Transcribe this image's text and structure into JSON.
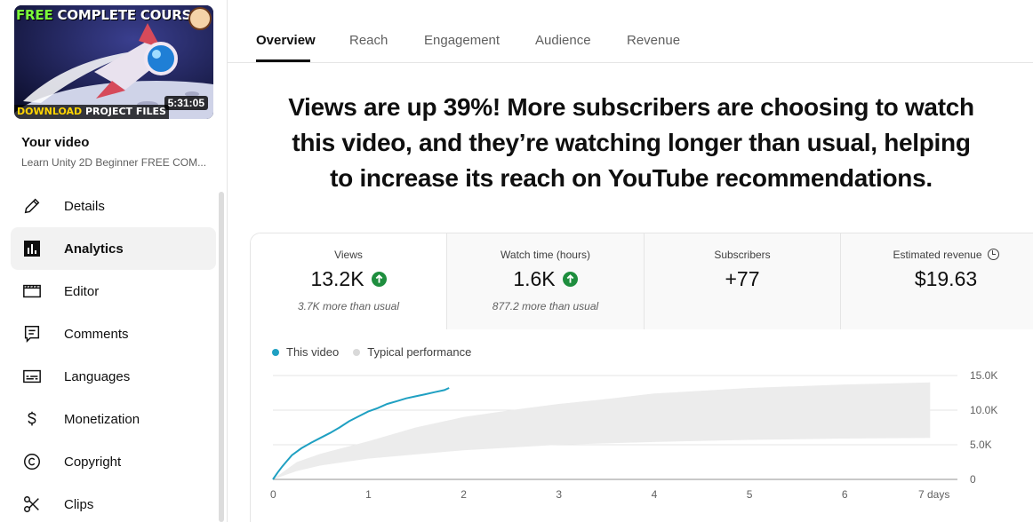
{
  "sidebar": {
    "thumbnail": {
      "title_word1": "FREE",
      "title_rest": "COMPLETE COURSE",
      "bottom_accent": "DOWNLOAD",
      "bottom_rest": "PROJECT FILES",
      "duration": "5:31:05"
    },
    "your_video_label": "Your video",
    "video_title": "Learn Unity 2D Beginner FREE COM...",
    "items": [
      {
        "label": "Details",
        "icon": "pencil-icon",
        "active": false
      },
      {
        "label": "Analytics",
        "icon": "analytics-icon",
        "active": true
      },
      {
        "label": "Editor",
        "icon": "film-icon",
        "active": false
      },
      {
        "label": "Comments",
        "icon": "comment-icon",
        "active": false
      },
      {
        "label": "Languages",
        "icon": "subtitles-icon",
        "active": false
      },
      {
        "label": "Monetization",
        "icon": "dollar-icon",
        "active": false
      },
      {
        "label": "Copyright",
        "icon": "copyright-icon",
        "active": false
      },
      {
        "label": "Clips",
        "icon": "scissors-icon",
        "active": false
      }
    ]
  },
  "tabs": [
    {
      "label": "Overview",
      "active": true
    },
    {
      "label": "Reach",
      "active": false
    },
    {
      "label": "Engagement",
      "active": false
    },
    {
      "label": "Audience",
      "active": false
    },
    {
      "label": "Revenue",
      "active": false
    }
  ],
  "headline": "Views are up 39%! More subscribers are choosing to watch this video, and they’re watching longer than usual, helping to increase its reach on YouTube recommendations.",
  "metrics": [
    {
      "label": "Views",
      "value": "13.2K",
      "trend": "up",
      "sub": "3.7K more than usual"
    },
    {
      "label": "Watch time (hours)",
      "value": "1.6K",
      "trend": "up",
      "sub": "877.2 more than usual"
    },
    {
      "label": "Subscribers",
      "value": "+77",
      "trend": "",
      "sub": ""
    },
    {
      "label": "Estimated revenue",
      "value": "$19.63",
      "trend": "",
      "sub": ""
    }
  ],
  "colors": {
    "this_video": "#1fa0c2",
    "typical_band": "#ececec",
    "up_arrow_bg": "#1e8e3e"
  },
  "chart_data": {
    "type": "line",
    "legend": [
      "This video",
      "Typical performance"
    ],
    "x_ticks": [
      "0",
      "1",
      "2",
      "3",
      "4",
      "5",
      "6",
      "7 days"
    ],
    "y_ticks": [
      "15.0K",
      "10.0K",
      "5.0K",
      "0"
    ],
    "xlim": [
      0,
      7
    ],
    "ylim": [
      0,
      15000
    ],
    "grid": true,
    "series": [
      {
        "name": "This video",
        "x": [
          0,
          0.05,
          0.1,
          0.15,
          0.2,
          0.3,
          0.4,
          0.5,
          0.6,
          0.7,
          0.8,
          0.9,
          1.0,
          1.1,
          1.2,
          1.3,
          1.4,
          1.5,
          1.6,
          1.7,
          1.8,
          1.85
        ],
        "y": [
          0,
          1000,
          1900,
          2700,
          3500,
          4500,
          5300,
          6000,
          6700,
          7500,
          8400,
          9100,
          9800,
          10300,
          10900,
          11300,
          11700,
          12000,
          12300,
          12600,
          12900,
          13200
        ]
      },
      {
        "name": "Typical performance",
        "type": "band",
        "x": [
          0,
          0.25,
          0.5,
          1,
          1.5,
          2,
          2.5,
          3,
          3.5,
          4,
          5,
          6,
          6.9
        ],
        "low": [
          0,
          1200,
          2000,
          3000,
          3600,
          4200,
          4600,
          5000,
          5200,
          5400,
          5700,
          5900,
          6000
        ],
        "high": [
          0,
          2500,
          3700,
          5500,
          7500,
          9000,
          10000,
          10900,
          11600,
          12400,
          13200,
          13700,
          14000
        ]
      }
    ]
  }
}
